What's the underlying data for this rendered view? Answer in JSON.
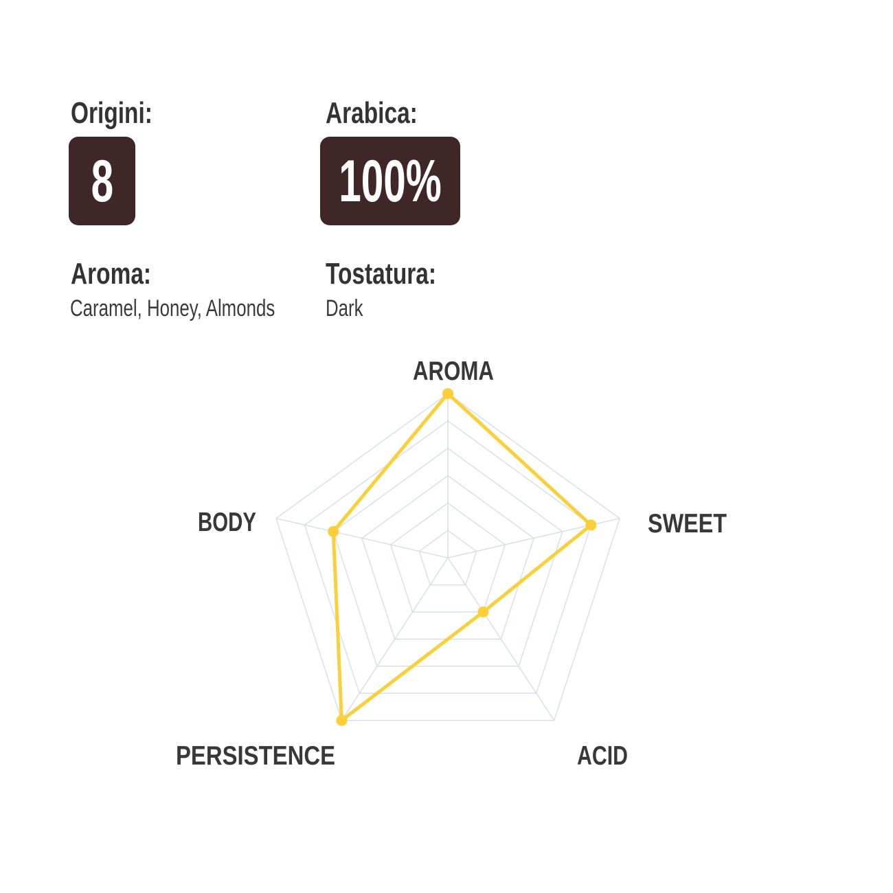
{
  "info": {
    "origin": {
      "label": "Origini:",
      "value": "8"
    },
    "arabica": {
      "label": "Arabica:",
      "value": "100%"
    },
    "aroma": {
      "label": "Aroma:",
      "value": "Caramel, Honey, Almonds"
    },
    "roast": {
      "label": "Tostatura:",
      "value": "Dark"
    }
  },
  "colors": {
    "badge_bg": "#3F2728",
    "badge_text": "#FFFFFF",
    "accent_yellow": "#FACF39",
    "grid": "#D8DFE8",
    "label_text": "#383838",
    "background": "#FFFFFF"
  },
  "chart_data": {
    "type": "radar",
    "categories": [
      "AROMA",
      "SWEET",
      "ACID",
      "PERSISTENCE",
      "BODY"
    ],
    "values": [
      6,
      5,
      2,
      6,
      4
    ],
    "max": 6,
    "rings": 6,
    "grid": true,
    "legend": false,
    "title": "",
    "shape": "pentagon"
  }
}
